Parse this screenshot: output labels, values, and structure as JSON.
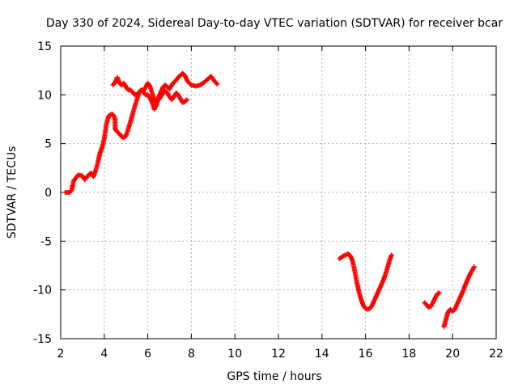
{
  "chart_data": {
    "type": "scatter",
    "title": "Day 330 of 2024, Sidereal Day-to-day VTEC variation (SDTVAR) for receiver bcar",
    "xlabel": "GPS time / hours",
    "ylabel": "SDTVAR / TECUs",
    "xlim": [
      2,
      22
    ],
    "ylim": [
      -15,
      15
    ],
    "xticks": [
      2,
      4,
      6,
      8,
      10,
      12,
      14,
      16,
      18,
      20,
      22
    ],
    "yticks": [
      -15,
      -10,
      -5,
      0,
      5,
      10,
      15
    ],
    "grid": true,
    "marker": "+",
    "color": "#ff0000",
    "segments": [
      [
        [
          2.2,
          0
        ],
        [
          2.4,
          0
        ],
        [
          2.5,
          0.2
        ],
        [
          2.6,
          1.2
        ],
        [
          2.8,
          1.8
        ],
        [
          3.0,
          1.7
        ],
        [
          3.1,
          1.3
        ],
        [
          3.2,
          1.6
        ],
        [
          3.3,
          1.8
        ],
        [
          3.4,
          2.0
        ],
        [
          3.5,
          1.6
        ],
        [
          3.6,
          2.2
        ],
        [
          3.7,
          3.0
        ],
        [
          3.8,
          4.0
        ],
        [
          3.9,
          4.6
        ],
        [
          4.0,
          5.5
        ],
        [
          4.1,
          7.0
        ],
        [
          4.2,
          7.8
        ],
        [
          4.3,
          8.0
        ],
        [
          4.4,
          8.0
        ],
        [
          4.5,
          7.5
        ],
        [
          4.5,
          6.5
        ],
        [
          4.6,
          6.2
        ],
        [
          4.7,
          6.0
        ],
        [
          4.8,
          5.7
        ],
        [
          4.9,
          5.6
        ],
        [
          5.0,
          5.8
        ],
        [
          5.1,
          6.5
        ],
        [
          5.2,
          7.2
        ],
        [
          5.3,
          8.0
        ],
        [
          5.4,
          8.8
        ],
        [
          5.5,
          9.5
        ],
        [
          5.6,
          10.2
        ],
        [
          5.7,
          10.5
        ],
        [
          5.8,
          10.4
        ],
        [
          5.9,
          10.8
        ],
        [
          6.0,
          11.2
        ],
        [
          6.1,
          10.9
        ],
        [
          6.2,
          10.2
        ],
        [
          6.3,
          9.5
        ],
        [
          6.4,
          9.3
        ],
        [
          6.5,
          9.5
        ],
        [
          6.6,
          9.8
        ],
        [
          6.7,
          10.2
        ],
        [
          6.8,
          10.4
        ],
        [
          6.9,
          10.2
        ],
        [
          7.0,
          9.8
        ],
        [
          7.1,
          9.5
        ],
        [
          7.2,
          9.8
        ],
        [
          7.3,
          10.2
        ],
        [
          7.4,
          10.0
        ],
        [
          7.5,
          9.6
        ],
        [
          7.6,
          9.2
        ],
        [
          7.7,
          9.3
        ],
        [
          7.8,
          9.5
        ]
      ],
      [
        [
          4.4,
          11.0
        ],
        [
          4.5,
          11.3
        ],
        [
          4.6,
          11.8
        ],
        [
          4.7,
          11.2
        ],
        [
          4.8,
          11.0
        ],
        [
          4.9,
          11.2
        ],
        [
          5.0,
          10.8
        ],
        [
          5.1,
          10.5
        ],
        [
          5.2,
          10.5
        ],
        [
          5.3,
          10.3
        ],
        [
          5.4,
          10.0
        ],
        [
          5.5,
          10.0
        ],
        [
          5.6,
          10.3
        ],
        [
          5.7,
          10.5
        ],
        [
          5.8,
          10.3
        ],
        [
          5.9,
          10.0
        ],
        [
          6.0,
          10.0
        ],
        [
          6.1,
          9.7
        ],
        [
          6.2,
          9.2
        ],
        [
          6.3,
          8.5
        ],
        [
          6.4,
          9.0
        ],
        [
          6.5,
          9.8
        ],
        [
          6.6,
          10.3
        ],
        [
          6.7,
          10.8
        ],
        [
          6.8,
          11.0
        ],
        [
          6.9,
          10.8
        ],
        [
          7.0,
          10.6
        ],
        [
          7.1,
          11.0
        ],
        [
          7.2,
          11.3
        ],
        [
          7.3,
          11.5
        ],
        [
          7.4,
          11.8
        ],
        [
          7.5,
          12.0
        ],
        [
          7.6,
          12.2
        ],
        [
          7.7,
          12.0
        ],
        [
          7.8,
          11.5
        ],
        [
          7.9,
          11.2
        ],
        [
          8.0,
          11.0
        ],
        [
          8.2,
          10.9
        ],
        [
          8.4,
          11.0
        ],
        [
          8.6,
          11.3
        ],
        [
          8.8,
          11.7
        ],
        [
          8.9,
          11.9
        ],
        [
          9.0,
          11.6
        ],
        [
          9.1,
          11.3
        ],
        [
          9.2,
          11.1
        ]
      ],
      [
        [
          14.8,
          -6.8
        ],
        [
          15.0,
          -6.5
        ],
        [
          15.2,
          -6.3
        ],
        [
          15.3,
          -6.5
        ],
        [
          15.4,
          -7.0
        ],
        [
          15.5,
          -8.0
        ],
        [
          15.6,
          -9.2
        ],
        [
          15.7,
          -10.2
        ],
        [
          15.8,
          -11.0
        ],
        [
          15.9,
          -11.6
        ],
        [
          16.0,
          -11.9
        ],
        [
          16.1,
          -12.0
        ],
        [
          16.2,
          -11.9
        ],
        [
          16.3,
          -11.6
        ],
        [
          16.4,
          -11.1
        ],
        [
          16.5,
          -10.6
        ],
        [
          16.6,
          -10.1
        ],
        [
          16.7,
          -9.6
        ],
        [
          16.8,
          -9.1
        ],
        [
          16.9,
          -8.5
        ],
        [
          17.0,
          -7.8
        ],
        [
          17.1,
          -7.0
        ],
        [
          17.2,
          -6.4
        ]
      ],
      [
        [
          18.7,
          -11.3
        ],
        [
          18.8,
          -11.5
        ],
        [
          18.9,
          -11.8
        ],
        [
          19.0,
          -11.7
        ],
        [
          19.1,
          -11.3
        ],
        [
          19.2,
          -10.8
        ],
        [
          19.3,
          -10.4
        ],
        [
          19.4,
          -10.3
        ]
      ],
      [
        [
          19.6,
          -13.8
        ],
        [
          19.7,
          -13.0
        ],
        [
          19.8,
          -12.2
        ],
        [
          19.9,
          -12.0
        ],
        [
          20.0,
          -12.2
        ],
        [
          20.1,
          -12.0
        ],
        [
          20.2,
          -11.5
        ],
        [
          20.3,
          -11.0
        ],
        [
          20.4,
          -10.5
        ],
        [
          20.5,
          -10.0
        ],
        [
          20.6,
          -9.4
        ],
        [
          20.7,
          -8.9
        ],
        [
          20.8,
          -8.4
        ],
        [
          20.9,
          -8.0
        ],
        [
          21.0,
          -7.6
        ]
      ]
    ]
  }
}
